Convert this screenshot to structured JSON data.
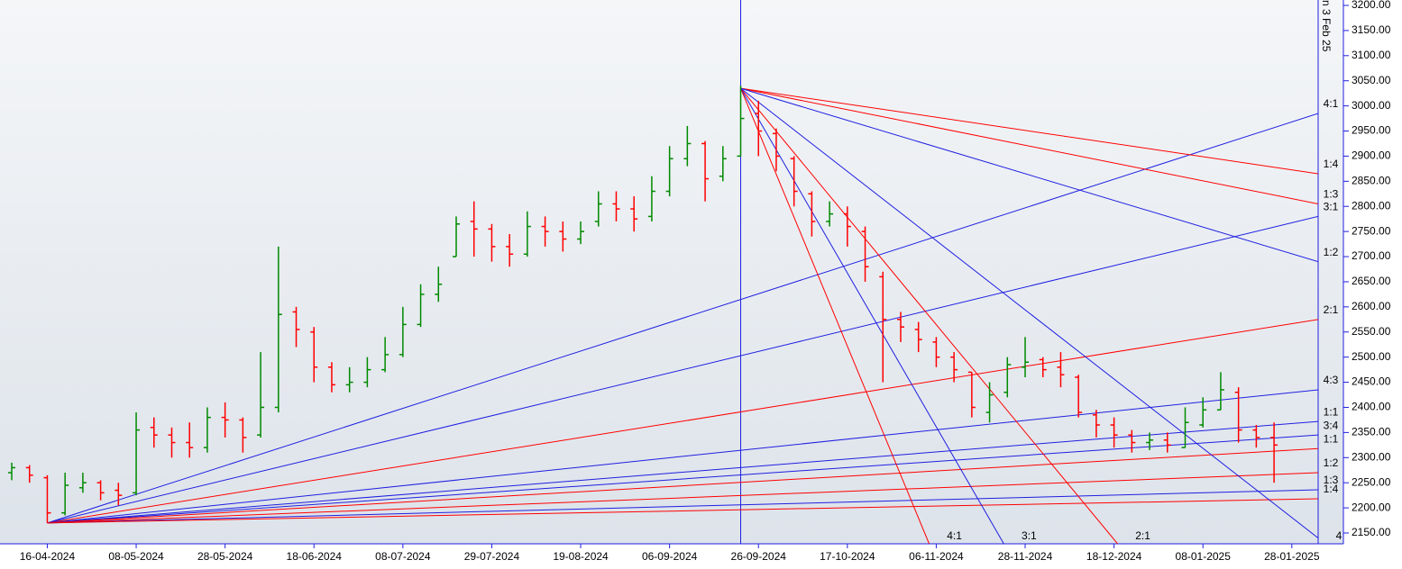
{
  "chart_data": {
    "type": "ohlc",
    "open": [
      2270,
      2280,
      2260,
      2190,
      2240,
      2250,
      2235,
      2230,
      2360,
      2345,
      2330,
      2320,
      2380,
      2375,
      2345,
      2400,
      2590,
      2550,
      2480,
      2445,
      2450,
      2475,
      2505,
      2565,
      2625,
      2700,
      2770,
      2755,
      2720,
      2705,
      2760,
      2750,
      2735,
      2770,
      2805,
      2795,
      2780,
      2830,
      2895,
      2925,
      2860,
      2900,
      2985,
      2945,
      2895,
      2825,
      2770,
      2785,
      2750,
      2660,
      2575,
      2555,
      2530,
      2500,
      2470,
      2390,
      2430,
      2480,
      2495,
      2480,
      2460,
      2385,
      2365,
      2345,
      2330,
      2335,
      2320,
      2365,
      2395,
      2430,
      2355,
      2340
    ],
    "high": [
      2290,
      2285,
      2265,
      2270,
      2270,
      2255,
      2250,
      2390,
      2380,
      2360,
      2370,
      2400,
      2410,
      2380,
      2510,
      2720,
      2600,
      2560,
      2490,
      2480,
      2500,
      2540,
      2600,
      2645,
      2680,
      2780,
      2810,
      2765,
      2745,
      2790,
      2780,
      2770,
      2770,
      2830,
      2830,
      2820,
      2860,
      2920,
      2960,
      2930,
      2920,
      3040,
      3010,
      2955,
      2900,
      2830,
      2810,
      2800,
      2760,
      2670,
      2590,
      2570,
      2540,
      2510,
      2470,
      2450,
      2500,
      2540,
      2500,
      2510,
      2465,
      2395,
      2380,
      2355,
      2350,
      2350,
      2400,
      2420,
      2470,
      2440,
      2365,
      2370
    ],
    "low": [
      2255,
      2250,
      2170,
      2185,
      2230,
      2215,
      2205,
      2225,
      2320,
      2300,
      2300,
      2310,
      2340,
      2310,
      2340,
      2390,
      2520,
      2450,
      2430,
      2430,
      2440,
      2470,
      2500,
      2560,
      2610,
      2700,
      2700,
      2690,
      2680,
      2700,
      2720,
      2710,
      2725,
      2760,
      2770,
      2750,
      2770,
      2820,
      2880,
      2810,
      2850,
      2900,
      2900,
      2870,
      2800,
      2740,
      2760,
      2720,
      2650,
      2450,
      2530,
      2510,
      2480,
      2450,
      2380,
      2370,
      2420,
      2460,
      2460,
      2440,
      2380,
      2340,
      2320,
      2310,
      2315,
      2310,
      2320,
      2360,
      2395,
      2330,
      2320,
      2250
    ],
    "close": [
      2280,
      2265,
      2190,
      2245,
      2250,
      2230,
      2225,
      2355,
      2345,
      2330,
      2320,
      2380,
      2375,
      2340,
      2400,
      2585,
      2555,
      2480,
      2445,
      2450,
      2475,
      2505,
      2565,
      2625,
      2645,
      2765,
      2755,
      2720,
      2705,
      2760,
      2750,
      2735,
      2750,
      2805,
      2795,
      2775,
      2830,
      2895,
      2925,
      2855,
      2895,
      2975,
      2950,
      2900,
      2830,
      2770,
      2785,
      2760,
      2680,
      2575,
      2560,
      2535,
      2500,
      2475,
      2400,
      2425,
      2485,
      2490,
      2475,
      2465,
      2390,
      2365,
      2345,
      2330,
      2335,
      2325,
      2370,
      2395,
      2435,
      2355,
      2340,
      2325
    ],
    "up_color": "#008a00",
    "down_color": "#ff0000",
    "xlim": [
      -0.66,
      73.48
    ],
    "xticks": [
      {
        "value": 2,
        "label": "16-04-2024"
      },
      {
        "value": 7,
        "label": "08-05-2024"
      },
      {
        "value": 12,
        "label": "28-05-2024"
      },
      {
        "value": 17,
        "label": "18-06-2024"
      },
      {
        "value": 22,
        "label": "08-07-2024"
      },
      {
        "value": 27,
        "label": "29-07-2024"
      },
      {
        "value": 32,
        "label": "19-08-2024"
      },
      {
        "value": 37,
        "label": "06-09-2024"
      },
      {
        "value": 42,
        "label": "26-09-2024"
      },
      {
        "value": 47,
        "label": "17-10-2024"
      },
      {
        "value": 52,
        "label": "06-11-2024"
      },
      {
        "value": 57,
        "label": "28-11-2024"
      },
      {
        "value": 62,
        "label": "18-12-2024"
      },
      {
        "value": 67,
        "label": "08-01-2025"
      },
      {
        "value": 72,
        "label": "28-01-2025"
      }
    ],
    "ylim": [
      2128.5,
      3210.75
    ],
    "yticks": [
      {
        "value": 2150,
        "label": "2150.00"
      },
      {
        "value": 2200,
        "label": "2200.00"
      },
      {
        "value": 2250,
        "label": "2250.00"
      },
      {
        "value": 2300,
        "label": "2300.00"
      },
      {
        "value": 2350,
        "label": "2350.00"
      },
      {
        "value": 2400,
        "label": "2400.00"
      },
      {
        "value": 2450,
        "label": "2450.00"
      },
      {
        "value": 2500,
        "label": "2500.00"
      },
      {
        "value": 2550,
        "label": "2550.00"
      },
      {
        "value": 2600,
        "label": "2600.00"
      },
      {
        "value": 2650,
        "label": "2650.00"
      },
      {
        "value": 2700,
        "label": "2700.00"
      },
      {
        "value": 2750,
        "label": "2750.00"
      },
      {
        "value": 2800,
        "label": "2800.00"
      },
      {
        "value": 2850,
        "label": "2850.00"
      },
      {
        "value": 2900,
        "label": "2900.00"
      },
      {
        "value": 2950,
        "label": "2950.00"
      },
      {
        "value": 3000,
        "label": "3000.00"
      },
      {
        "value": 3050,
        "label": "3050.00"
      },
      {
        "value": 3100,
        "label": "3100.00"
      },
      {
        "value": 3150,
        "label": "3150.00"
      },
      {
        "value": 3200,
        "label": "3200.00"
      }
    ],
    "marker_line": 41,
    "marker_text": "n 3 Feb 25",
    "fans": [
      {
        "origin": [
          2,
          2170
        ],
        "lines": [
          {
            "end": [
              73.48,
              2985
            ],
            "color": "#1f1fe0",
            "label": "4:1"
          },
          {
            "end": [
              73.48,
              2780
            ],
            "color": "#1f1fe0",
            "label": "3:1"
          },
          {
            "end": [
              73.48,
              2575
            ],
            "color": "#ff0000",
            "label": "2:1"
          },
          {
            "end": [
              73.48,
              2435
            ],
            "color": "#1f1fe0",
            "label": "4:3"
          },
          {
            "end": [
              73.48,
              2372
            ],
            "color": "#1f1fe0",
            "label": "1:1"
          },
          {
            "end": [
              73.48,
              2345
            ],
            "color": "#1f1fe0",
            "label": "3:4"
          },
          {
            "end": [
              73.48,
              2318
            ],
            "color": "#ff0000",
            "label": "1:1"
          },
          {
            "end": [
              73.48,
              2270
            ],
            "color": "#ff0000",
            "label": "1:2"
          },
          {
            "end": [
              73.48,
              2236
            ],
            "color": "#1f1fe0",
            "label": "1:3"
          },
          {
            "end": [
              73.48,
              2218
            ],
            "color": "#ff0000",
            "label": "1:4"
          }
        ]
      },
      {
        "origin": [
          41,
          3035
        ],
        "lines": [
          {
            "end": [
              73.48,
              2865
            ],
            "color": "#ff0000",
            "label": "1:4"
          },
          {
            "end": [
              73.48,
              2805
            ],
            "color": "#ff0000",
            "label": "1:3"
          },
          {
            "end": [
              73.48,
              2690
            ],
            "color": "#1f1fe0",
            "label": "1:2"
          },
          {
            "end": [
              51.6,
              2128.5
            ],
            "color": "#ff0000",
            "label": "4:1"
          },
          {
            "end": [
              55.8,
              2128.5
            ],
            "color": "#1f1fe0",
            "label": "3:1"
          },
          {
            "end": [
              62.2,
              2128.5
            ],
            "color": "#ff0000",
            "label": "2:1"
          },
          {
            "end": [
              73.48,
              2140
            ],
            "color": "#1f1fe0",
            "label": "4"
          }
        ]
      }
    ]
  }
}
